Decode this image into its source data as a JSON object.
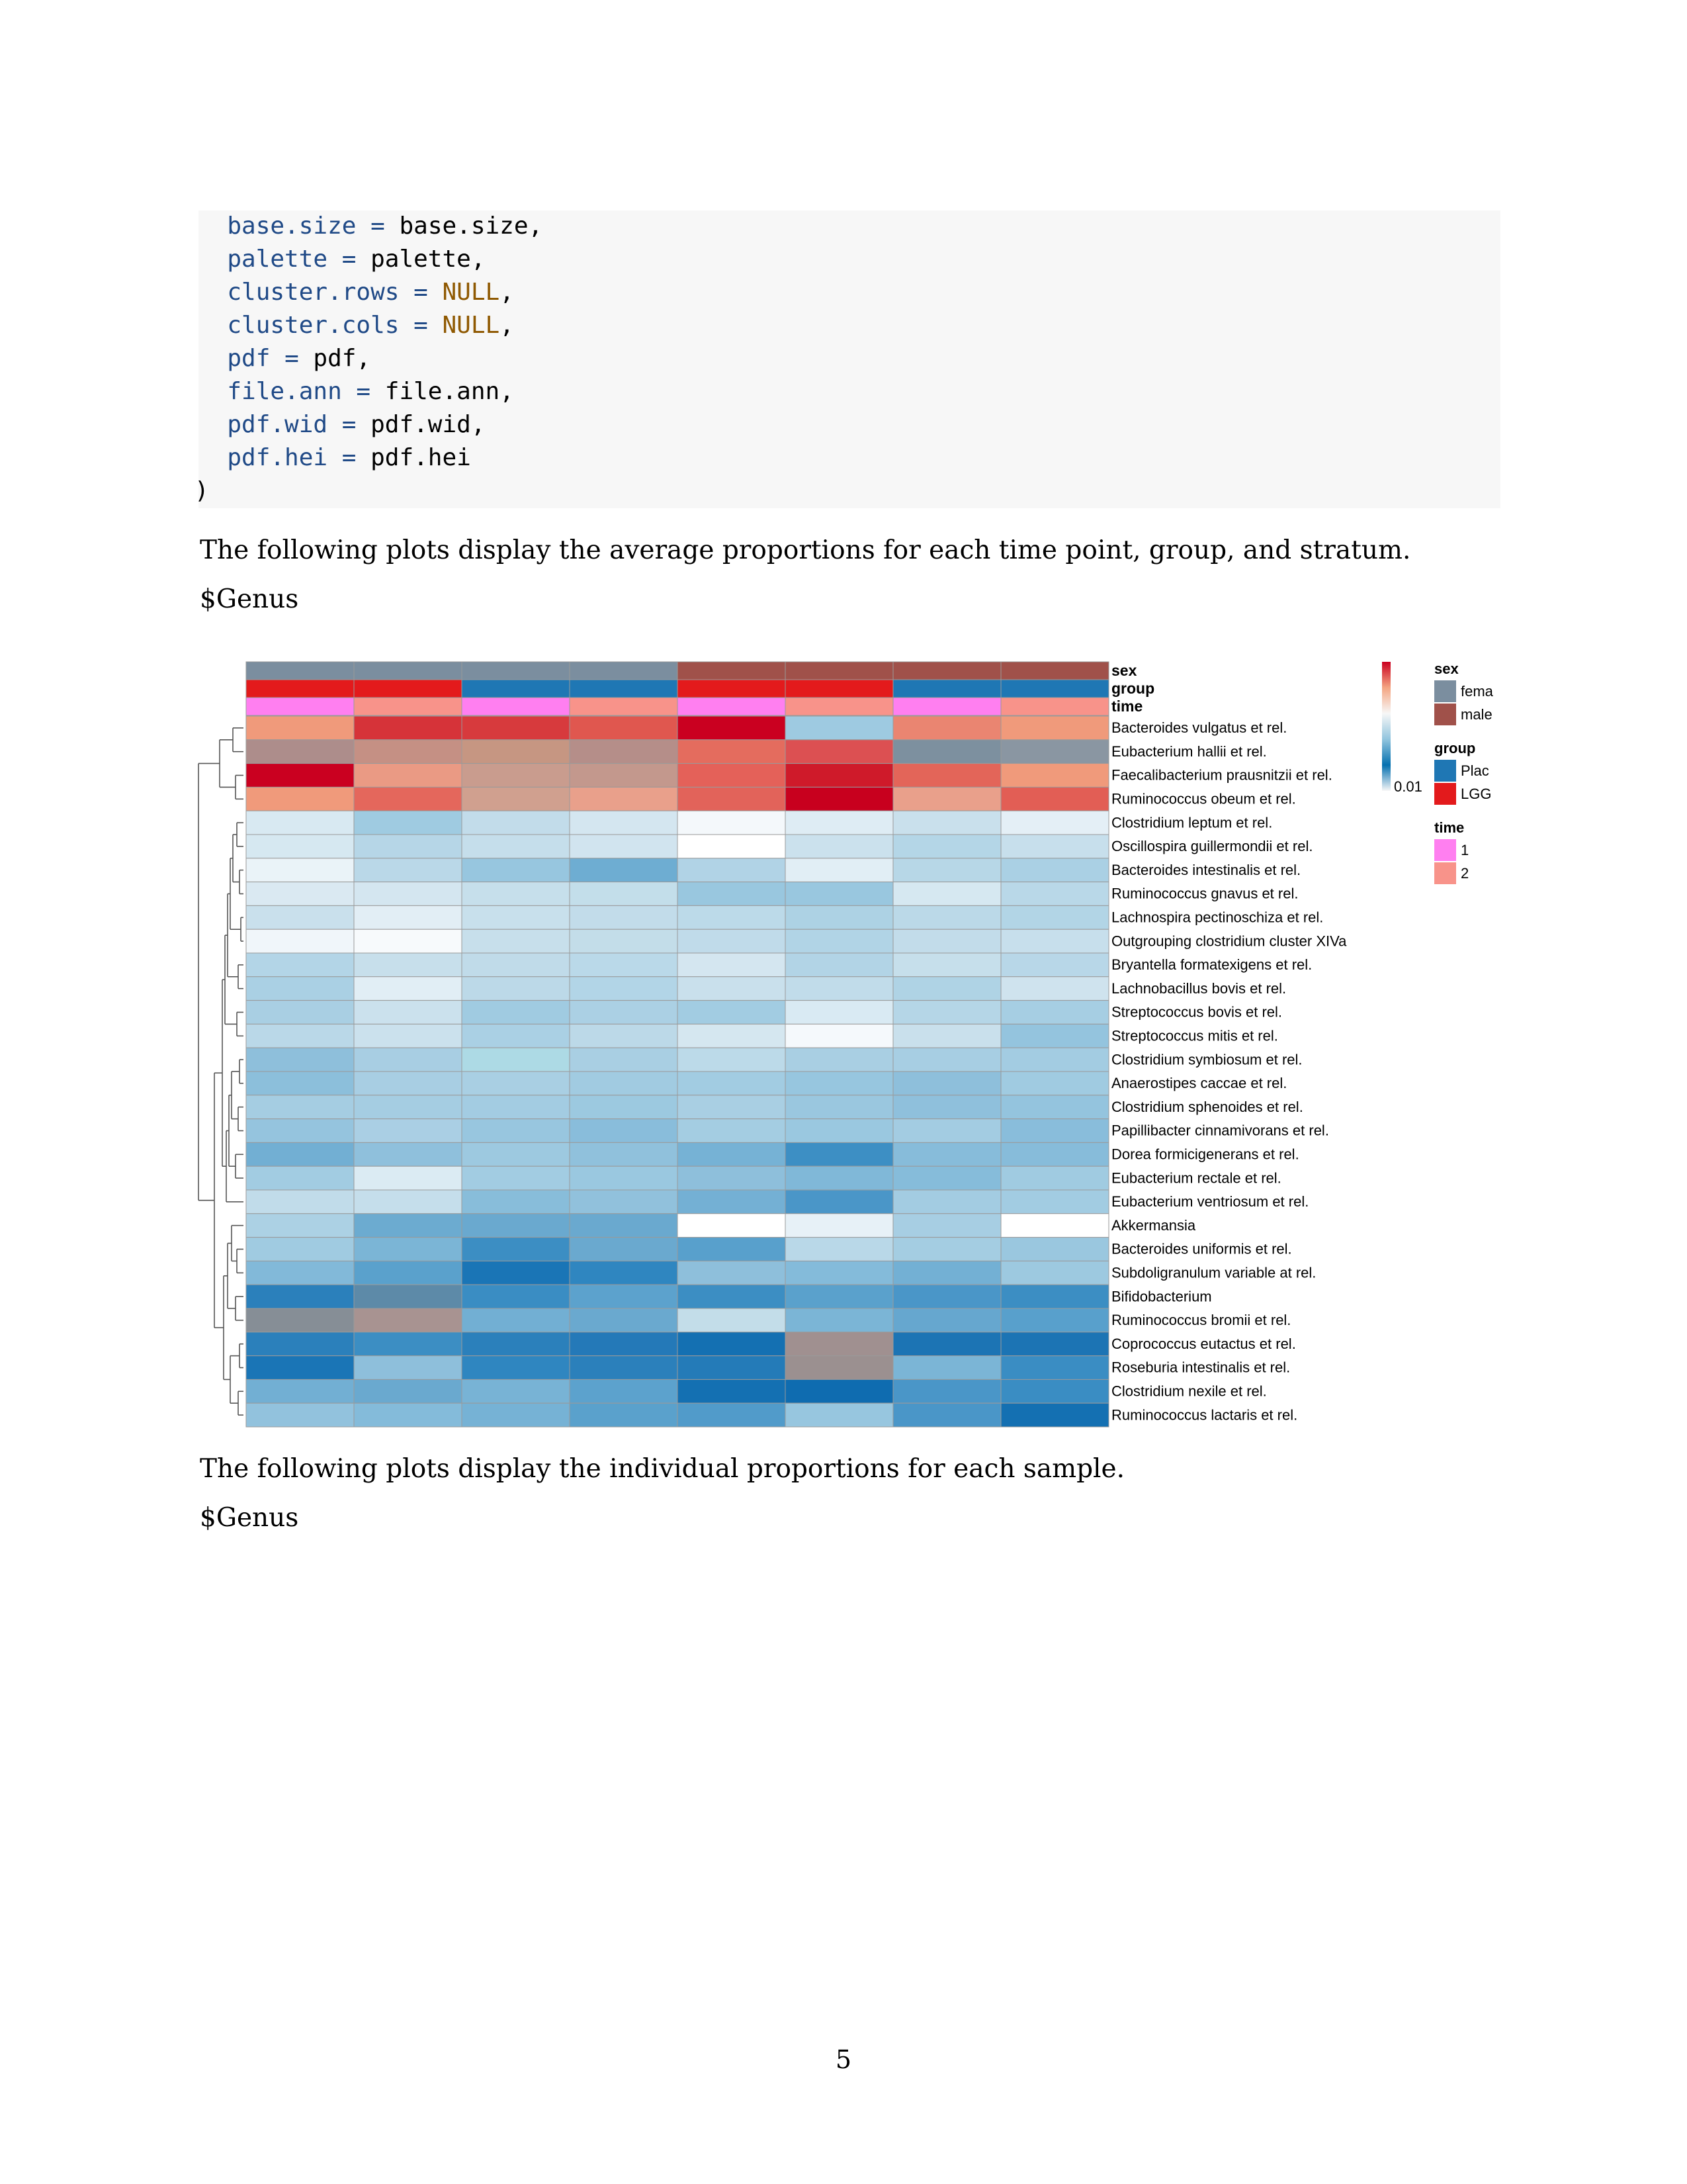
{
  "code": {
    "lines": [
      {
        "indent": "  ",
        "arg": "base.size",
        "op": " = ",
        "val": "base.size",
        "suffix": ",",
        "null": false
      },
      {
        "indent": "  ",
        "arg": "palette",
        "op": " = ",
        "val": "palette",
        "suffix": ",",
        "null": false
      },
      {
        "indent": "  ",
        "arg": "cluster.rows",
        "op": " = ",
        "val": "NULL",
        "suffix": ",",
        "null": true
      },
      {
        "indent": "  ",
        "arg": "cluster.cols",
        "op": " = ",
        "val": "NULL",
        "suffix": ",",
        "null": true
      },
      {
        "indent": "  ",
        "arg": "pdf",
        "op": " = ",
        "val": "pdf",
        "suffix": ",",
        "null": false
      },
      {
        "indent": "  ",
        "arg": "file.ann",
        "op": " = ",
        "val": "file.ann",
        "suffix": ",",
        "null": false
      },
      {
        "indent": "  ",
        "arg": "pdf.wid",
        "op": " = ",
        "val": "pdf.wid",
        "suffix": ",",
        "null": false
      },
      {
        "indent": "  ",
        "arg": "pdf.hei",
        "op": " = ",
        "val": "pdf.hei",
        "suffix": "",
        "null": false
      }
    ],
    "closing": ")"
  },
  "text": {
    "para1": "The following plots display the average proportions for each time point, group, and stratum.",
    "heading1": "$Genus",
    "para2": "The following plots display the individual proportions for each sample.",
    "heading2": "$Genus",
    "page_number": "5"
  },
  "chart_data": {
    "type": "heatmap",
    "annotation_tracks": [
      {
        "name": "sex",
        "values": [
          "female",
          "female",
          "female",
          "female",
          "male",
          "male",
          "male",
          "male"
        ]
      },
      {
        "name": "group",
        "values": [
          "LGG",
          "LGG",
          "Placebo",
          "Placebo",
          "LGG",
          "LGG",
          "Placebo",
          "Placebo"
        ]
      },
      {
        "name": "time",
        "values": [
          "1",
          "2",
          "1",
          "2",
          "1",
          "2",
          "1",
          "2"
        ]
      }
    ],
    "rows": [
      "Bacteroides vulgatus et rel.",
      "Eubacterium hallii et rel.",
      "Faecalibacterium prausnitzii et rel.",
      "Ruminococcus obeum et rel.",
      "Clostridium leptum et rel.",
      "Oscillospira guillermondii et rel.",
      "Bacteroides intestinalis et rel.",
      "Ruminococcus gnavus et rel.",
      "Lachnospira pectinoschiza et rel.",
      "Outgrouping clostridium cluster XIVa",
      "Bryantella formatexigens et rel.",
      "Lachnobacillus bovis et rel.",
      "Streptococcus bovis et rel.",
      "Streptococcus mitis et rel.",
      "Clostridium symbiosum et rel.",
      "Anaerostipes caccae et rel.",
      "Clostridium sphenoides et rel.",
      "Papillibacter cinnamivorans et rel.",
      "Dorea formicigenerans et rel.",
      "Eubacterium rectale et rel.",
      "Eubacterium ventriosum et rel.",
      "Akkermansia",
      "Bacteroides uniformis et rel.",
      "Subdoligranulum variable at rel.",
      "Bifidobacterium",
      "Ruminococcus bromii et rel.",
      "Coprococcus eutactus et rel.",
      "Roseburia intestinalis et rel.",
      "Clostridium nexile et rel.",
      "Ruminococcus lactaris et rel."
    ],
    "cell_colors": [
      [
        "#f09a7b",
        "#d63339",
        "#d73a3d",
        "#e0574f",
        "#ca0020",
        "#9ecae1",
        "#ea8571",
        "#f09a7b"
      ],
      [
        "#ad8d8b",
        "#c59084",
        "#c69682",
        "#b58e89",
        "#e46c5e",
        "#dc5052",
        "#7d909f",
        "#8a96a2"
      ],
      [
        "#ca0020",
        "#ea9a84",
        "#c99c8e",
        "#c3988d",
        "#e46159",
        "#cf1a2a",
        "#e36559",
        "#f09a7b"
      ],
      [
        "#f09a7b",
        "#e4675c",
        "#d0a08f",
        "#e9a08b",
        "#e2635a",
        "#c8001e",
        "#e9a08b",
        "#e25e55"
      ],
      [
        "#d8e9f2",
        "#9fcbe1",
        "#c2dcea",
        "#d4e6f0",
        "#f4f8fb",
        "#deecf4",
        "#c9e0ec",
        "#e4eff6"
      ],
      [
        "#d6e8f1",
        "#b6d6e7",
        "#c5deeb",
        "#d1e4ef",
        "#ffffff",
        "#cbe1ed",
        "#b4d6e7",
        "#c7dfec"
      ],
      [
        "#eaf3f8",
        "#bad8e8",
        "#97c6df",
        "#6eadd2",
        "#b1d3e6",
        "#e1eef5",
        "#b7d7e7",
        "#aad0e4"
      ],
      [
        "#dae9f2",
        "#d4e6f0",
        "#c6dfeb",
        "#c3deea",
        "#99c7df",
        "#99c7df",
        "#d6e8f1",
        "#b9d8e8"
      ],
      [
        "#c9e0ec",
        "#e2eef5",
        "#c8e0ec",
        "#c2dcea",
        "#bcdae9",
        "#add2e4",
        "#bbd9e8",
        "#b2d5e6"
      ],
      [
        "#f0f6fa",
        "#f7fafc",
        "#c7dfeb",
        "#c3dde9",
        "#c0dbea",
        "#b1d4e6",
        "#c2dcea",
        "#c7dfec"
      ],
      [
        "#b3d5e7",
        "#c7dfeb",
        "#c0dbe9",
        "#bad9e9",
        "#d4e6f0",
        "#b2d4e6",
        "#c6dfeb",
        "#b8d7e8"
      ],
      [
        "#aad0e4",
        "#e1eef5",
        "#bcd9e8",
        "#b2d5e7",
        "#c9e0ec",
        "#c1dcea",
        "#afd3e5",
        "#cfe3ee"
      ],
      [
        "#a9cfe3",
        "#cbe1ed",
        "#a0cbe1",
        "#abd0e4",
        "#a2cce2",
        "#d9eaf3",
        "#b5d6e7",
        "#a6cee3"
      ],
      [
        "#bad8e8",
        "#cbe1ed",
        "#aad0e4",
        "#bcd9e8",
        "#d5e7f0",
        "#f5f9fc",
        "#c9e0ec",
        "#94c4de"
      ],
      [
        "#8ebfdb",
        "#a8cee3",
        "#addae5",
        "#a9cfe3",
        "#bcdae9",
        "#a9cfe3",
        "#a7cee3",
        "#a3cce2"
      ],
      [
        "#8cbfdb",
        "#a8cee3",
        "#a9cfe3",
        "#a1cbe1",
        "#a2cce2",
        "#97c6df",
        "#8ebfdb",
        "#a0cbe1"
      ],
      [
        "#a5cde2",
        "#a5cde2",
        "#a3cce2",
        "#9cc9e0",
        "#a9cfe3",
        "#9ac7df",
        "#8fc0dc",
        "#94c4de"
      ],
      [
        "#95c4de",
        "#aacfe4",
        "#98c6df",
        "#89bddb",
        "#a4cde2",
        "#9ac8e0",
        "#a3cce2",
        "#89bddb"
      ],
      [
        "#72afd3",
        "#8fc0dc",
        "#9dc9e0",
        "#90c1dc",
        "#76b2d5",
        "#3d8fc4",
        "#87bcda",
        "#87bcda"
      ],
      [
        "#a2cce2",
        "#dbebf3",
        "#a2cce2",
        "#9ac8e0",
        "#8ebfdb",
        "#80b8d8",
        "#86bcda",
        "#a0cbe1"
      ],
      [
        "#c1dcea",
        "#c5deeb",
        "#88bdda",
        "#91c1dc",
        "#74b0d4",
        "#4a96c8",
        "#a3cce2",
        "#a2cce2"
      ],
      [
        "#acd1e4",
        "#6cabd0",
        "#6aa9cf",
        "#6aa9cf",
        "#ffffff",
        "#e7f1f7",
        "#a7cee3",
        "#ffffff"
      ],
      [
        "#a0cbe1",
        "#7bb5d6",
        "#3c8ec3",
        "#6aa9cf",
        "#58a0cc",
        "#b9d8e8",
        "#a4cde2",
        "#9ac7df"
      ],
      [
        "#82b9d9",
        "#5aa1cc",
        "#1a75b6",
        "#2f86c0",
        "#8ebfdb",
        "#84bbda",
        "#73b0d4",
        "#9dc9e0"
      ],
      [
        "#2b80bb",
        "#5d8aa8",
        "#3a8dc3",
        "#5ca2cd",
        "#3c8ec3",
        "#5aa1cc",
        "#4a96c8",
        "#3c8ec3"
      ],
      [
        "#868e96",
        "#a89391",
        "#72afd3",
        "#6aa9cf",
        "#c3dde9",
        "#7bb5d6",
        "#66a7cf",
        "#58a0cc"
      ],
      [
        "#2b80bb",
        "#3c8ec3",
        "#2b80bb",
        "#2479b8",
        "#1470b2",
        "#a09090",
        "#1c74b4",
        "#1c74b4"
      ],
      [
        "#1a75b6",
        "#8ebfdb",
        "#2f86c0",
        "#2b80bb",
        "#247bb8",
        "#9b9090",
        "#7bb5d6",
        "#3a8dc3"
      ],
      [
        "#72afd3",
        "#6aa9cf",
        "#78b3d5",
        "#5ca2cd",
        "#1470b2",
        "#0f6cb0",
        "#4a96c8",
        "#3a8dc3"
      ],
      [
        "#92c2dd",
        "#84bbda",
        "#76b2d5",
        "#5aa1cc",
        "#519bca",
        "#97c6df",
        "#4a96c8",
        "#1470b2"
      ]
    ],
    "colorbar": {
      "label": "0.01",
      "colors": [
        "#ca0020",
        "#f4a582",
        "#f7f7f7",
        "#92c5de",
        "#0571b0",
        "#f7f7f7"
      ]
    },
    "legend": {
      "sex": {
        "title": "sex",
        "items": [
          {
            "label": "fema",
            "color": "#7b8e9f"
          },
          {
            "label": "male",
            "color": "#a0514a"
          }
        ]
      },
      "group": {
        "title": "group",
        "items": [
          {
            "label": "Plac",
            "color": "#1f77b4"
          },
          {
            "label": "LGG",
            "color": "#e31a1c"
          }
        ]
      },
      "time": {
        "title": "time",
        "items": [
          {
            "label": "1",
            "color": "#ff7ff0"
          },
          {
            "label": "2",
            "color": "#f8938a"
          }
        ]
      }
    },
    "track_colors": {
      "sex": {
        "female": "#7b8e9f",
        "male": "#a0514a"
      },
      "group": {
        "LGG": "#e31a1c",
        "Placebo": "#1f77b4"
      },
      "time": {
        "1": "#ff7ff0",
        "2": "#f8938a"
      }
    }
  }
}
